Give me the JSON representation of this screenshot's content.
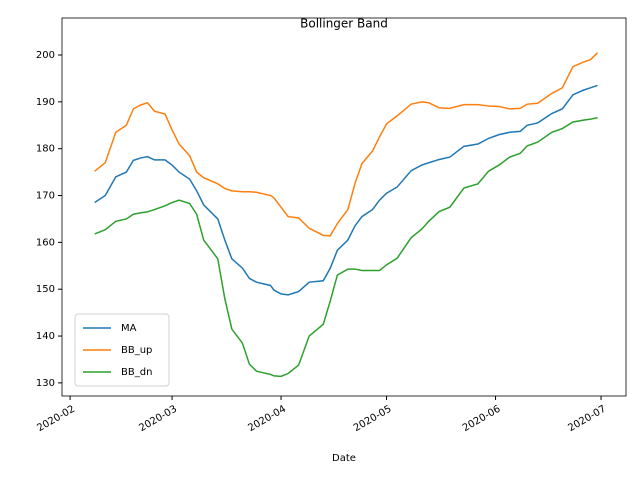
{
  "chart_data": {
    "type": "line",
    "title": "Bollinger Band",
    "x_label": "Date",
    "x": [
      7,
      10,
      13,
      16,
      18,
      20,
      22,
      24,
      27,
      29,
      31,
      34,
      36,
      38,
      42,
      44,
      46,
      49,
      51,
      53,
      57,
      58,
      60,
      62,
      65,
      68,
      72,
      74,
      76,
      79,
      81,
      83,
      86,
      88,
      90,
      93,
      97,
      100,
      102,
      105,
      108,
      112,
      116,
      119,
      122,
      125,
      128,
      130,
      133,
      137,
      140,
      143,
      146,
      148,
      150
    ],
    "series": [
      {
        "name": "MA",
        "color": "#1f77b4",
        "values": [
          168.5,
          170,
          174,
          175,
          177.5,
          178,
          178.3,
          177.6,
          177.6,
          176.5,
          175,
          173.5,
          171,
          168,
          165,
          160.5,
          156.5,
          154.5,
          152.3,
          151.5,
          150.8,
          149.8,
          149,
          148.8,
          149.5,
          151.5,
          151.8,
          154.5,
          158.3,
          160.5,
          163.5,
          165.5,
          167,
          169,
          170.5,
          171.8,
          175.3,
          176.5,
          177,
          177.7,
          178.2,
          180.5,
          181,
          182.2,
          183,
          183.5,
          183.7,
          185,
          185.5,
          187.5,
          188.5,
          191.5,
          192.5,
          193,
          193.5
        ]
      },
      {
        "name": "BB_up",
        "color": "#ff7f0e",
        "values": [
          175.2,
          177,
          183.5,
          185,
          188.5,
          189.3,
          189.8,
          188,
          187.4,
          184,
          181,
          178.5,
          175,
          173.8,
          172.5,
          171.5,
          171,
          170.8,
          170.8,
          170.7,
          170,
          169.5,
          167.5,
          165.5,
          165.2,
          163,
          161.5,
          161.4,
          164,
          167,
          172.5,
          176.8,
          179.5,
          182.5,
          185.3,
          187,
          189.5,
          190,
          189.8,
          188.7,
          188.6,
          189.4,
          189.4,
          189.1,
          189,
          188.5,
          188.6,
          189.5,
          189.7,
          191.8,
          193,
          197.5,
          198.5,
          199,
          200.5
        ]
      },
      {
        "name": "BB_dn",
        "color": "#2ca02c",
        "values": [
          161.8,
          162.7,
          164.5,
          165,
          166,
          166.3,
          166.5,
          167,
          167.8,
          168.5,
          169,
          168.3,
          166,
          160.5,
          156.5,
          148,
          141.5,
          138.5,
          134,
          132.5,
          131.8,
          131.5,
          131.4,
          132,
          133.8,
          140,
          142.5,
          147.5,
          153,
          154.3,
          154.3,
          154,
          154,
          154,
          155.2,
          156.6,
          161,
          162.8,
          164.5,
          166.6,
          167.5,
          171.6,
          172.5,
          175.2,
          176.5,
          178.2,
          179,
          180.6,
          181.4,
          183.5,
          184.3,
          185.7,
          186.1,
          186.3,
          186.6
        ]
      }
    ],
    "xlim": [
      -2.3,
      158.1
    ],
    "xticks": [
      {
        "value": 0,
        "label": "2020-02"
      },
      {
        "value": 29,
        "label": "2020-03"
      },
      {
        "value": 60,
        "label": "2020-04"
      },
      {
        "value": 90,
        "label": "2020-05"
      },
      {
        "value": 121,
        "label": "2020-06"
      },
      {
        "value": 151,
        "label": "2020-07"
      }
    ],
    "ylim": [
      127.2,
      207.9
    ],
    "yticks": [
      130,
      140,
      150,
      160,
      170,
      180,
      190,
      200
    ],
    "legend": "lower left",
    "grid": false
  }
}
